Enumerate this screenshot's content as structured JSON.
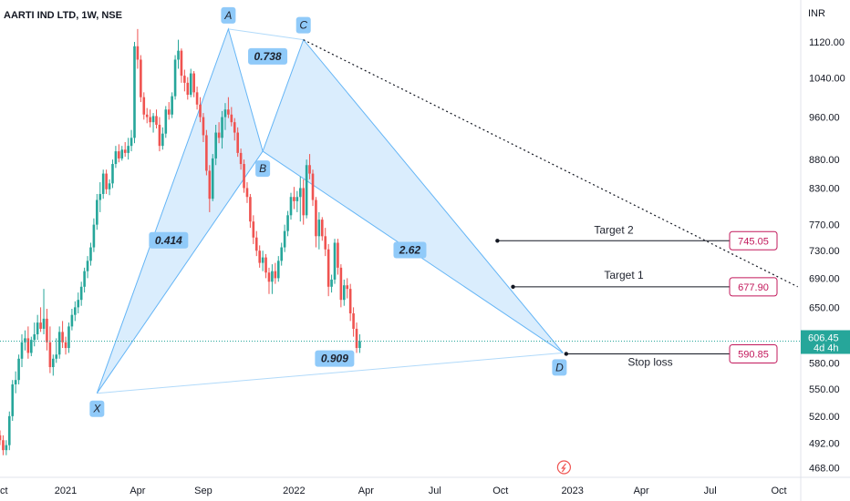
{
  "header": {
    "title": "AARTI IND LTD, 1W, NSE"
  },
  "currency": "INR",
  "colors": {
    "up": "#26a69a",
    "down": "#ef5350",
    "pattern_fill": "#bbdefb",
    "pattern_stroke": "#64b5f6",
    "label_box": "#90caf9",
    "target_border": "#c2185b",
    "last_price_bg": "#26a69a",
    "trendline": "#131722"
  },
  "chart_data": {
    "type": "candlestick",
    "title": "AARTI IND LTD, 1W, NSE",
    "y_axis": {
      "scale": "log",
      "range": [
        455,
        1250
      ],
      "ticks": [
        "1120.00",
        "1040.00",
        "960.00",
        "880.00",
        "830.00",
        "770.00",
        "730.00",
        "690.00",
        "650.00",
        "580.00",
        "550.00",
        "520.00",
        "492.00",
        "468.00"
      ]
    },
    "x_axis": {
      "ticks": [
        "Oct",
        "2021",
        "Apr",
        "Sep",
        "2022",
        "Apr",
        "Jul",
        "Oct",
        "2023",
        "Apr",
        "Jul",
        "Oct"
      ]
    },
    "candles": [
      {
        "o": 500,
        "h": 505,
        "l": 490,
        "c": 495
      },
      {
        "o": 495,
        "h": 500,
        "l": 480,
        "c": 485
      },
      {
        "o": 485,
        "h": 495,
        "l": 480,
        "c": 490
      },
      {
        "o": 490,
        "h": 525,
        "l": 485,
        "c": 520
      },
      {
        "o": 520,
        "h": 560,
        "l": 515,
        "c": 555
      },
      {
        "o": 555,
        "h": 570,
        "l": 545,
        "c": 560
      },
      {
        "o": 560,
        "h": 590,
        "l": 555,
        "c": 585
      },
      {
        "o": 585,
        "h": 615,
        "l": 575,
        "c": 605
      },
      {
        "o": 605,
        "h": 620,
        "l": 595,
        "c": 610
      },
      {
        "o": 610,
        "h": 625,
        "l": 585,
        "c": 592
      },
      {
        "o": 592,
        "h": 612,
        "l": 588,
        "c": 608
      },
      {
        "o": 608,
        "h": 630,
        "l": 600,
        "c": 615
      },
      {
        "o": 615,
        "h": 640,
        "l": 608,
        "c": 630
      },
      {
        "o": 630,
        "h": 650,
        "l": 618,
        "c": 622
      },
      {
        "o": 622,
        "h": 675,
        "l": 615,
        "c": 635
      },
      {
        "o": 635,
        "h": 648,
        "l": 595,
        "c": 605
      },
      {
        "o": 605,
        "h": 625,
        "l": 568,
        "c": 575
      },
      {
        "o": 575,
        "h": 590,
        "l": 565,
        "c": 585
      },
      {
        "o": 585,
        "h": 610,
        "l": 580,
        "c": 590
      },
      {
        "o": 590,
        "h": 625,
        "l": 585,
        "c": 618
      },
      {
        "o": 618,
        "h": 632,
        "l": 598,
        "c": 605
      },
      {
        "o": 605,
        "h": 612,
        "l": 590,
        "c": 598
      },
      {
        "o": 598,
        "h": 630,
        "l": 592,
        "c": 625
      },
      {
        "o": 625,
        "h": 648,
        "l": 620,
        "c": 640
      },
      {
        "o": 640,
        "h": 658,
        "l": 632,
        "c": 650
      },
      {
        "o": 650,
        "h": 670,
        "l": 642,
        "c": 660
      },
      {
        "o": 660,
        "h": 685,
        "l": 652,
        "c": 678
      },
      {
        "o": 678,
        "h": 705,
        "l": 670,
        "c": 700
      },
      {
        "o": 700,
        "h": 722,
        "l": 690,
        "c": 715
      },
      {
        "o": 715,
        "h": 742,
        "l": 708,
        "c": 735
      },
      {
        "o": 735,
        "h": 780,
        "l": 728,
        "c": 770
      },
      {
        "o": 770,
        "h": 820,
        "l": 762,
        "c": 810
      },
      {
        "o": 810,
        "h": 840,
        "l": 790,
        "c": 820
      },
      {
        "o": 820,
        "h": 862,
        "l": 812,
        "c": 855
      },
      {
        "o": 855,
        "h": 862,
        "l": 820,
        "c": 828
      },
      {
        "o": 828,
        "h": 845,
        "l": 818,
        "c": 838
      },
      {
        "o": 838,
        "h": 880,
        "l": 830,
        "c": 872
      },
      {
        "o": 872,
        "h": 905,
        "l": 865,
        "c": 895
      },
      {
        "o": 895,
        "h": 908,
        "l": 875,
        "c": 882
      },
      {
        "o": 882,
        "h": 905,
        "l": 878,
        "c": 898
      },
      {
        "o": 898,
        "h": 912,
        "l": 885,
        "c": 892
      },
      {
        "o": 892,
        "h": 920,
        "l": 880,
        "c": 905
      },
      {
        "o": 905,
        "h": 935,
        "l": 895,
        "c": 920
      },
      {
        "o": 920,
        "h": 1120,
        "l": 910,
        "c": 1110
      },
      {
        "o": 1110,
        "h": 1150,
        "l": 1060,
        "c": 1080
      },
      {
        "o": 1080,
        "h": 1090,
        "l": 990,
        "c": 1000
      },
      {
        "o": 1000,
        "h": 1010,
        "l": 955,
        "c": 965
      },
      {
        "o": 965,
        "h": 978,
        "l": 948,
        "c": 960
      },
      {
        "o": 960,
        "h": 975,
        "l": 940,
        "c": 950
      },
      {
        "o": 950,
        "h": 968,
        "l": 930,
        "c": 962
      },
      {
        "o": 962,
        "h": 975,
        "l": 938,
        "c": 945
      },
      {
        "o": 945,
        "h": 960,
        "l": 895,
        "c": 905
      },
      {
        "o": 905,
        "h": 940,
        "l": 898,
        "c": 928
      },
      {
        "o": 928,
        "h": 982,
        "l": 920,
        "c": 975
      },
      {
        "o": 975,
        "h": 990,
        "l": 955,
        "c": 965
      },
      {
        "o": 965,
        "h": 1010,
        "l": 958,
        "c": 1002
      },
      {
        "o": 1002,
        "h": 1090,
        "l": 995,
        "c": 1080
      },
      {
        "o": 1080,
        "h": 1125,
        "l": 1060,
        "c": 1100
      },
      {
        "o": 1100,
        "h": 1105,
        "l": 1030,
        "c": 1045
      },
      {
        "o": 1045,
        "h": 1058,
        "l": 1012,
        "c": 1030
      },
      {
        "o": 1030,
        "h": 1042,
        "l": 995,
        "c": 1005
      },
      {
        "o": 1005,
        "h": 1060,
        "l": 1000,
        "c": 1050
      },
      {
        "o": 1050,
        "h": 1055,
        "l": 1000,
        "c": 1010
      },
      {
        "o": 1010,
        "h": 1022,
        "l": 975,
        "c": 985
      },
      {
        "o": 985,
        "h": 1000,
        "l": 950,
        "c": 960
      },
      {
        "o": 960,
        "h": 968,
        "l": 912,
        "c": 925
      },
      {
        "o": 925,
        "h": 935,
        "l": 852,
        "c": 860
      },
      {
        "o": 860,
        "h": 870,
        "l": 790,
        "c": 812
      },
      {
        "o": 812,
        "h": 890,
        "l": 808,
        "c": 882
      },
      {
        "o": 882,
        "h": 945,
        "l": 870,
        "c": 930
      },
      {
        "o": 930,
        "h": 950,
        "l": 910,
        "c": 920
      },
      {
        "o": 920,
        "h": 972,
        "l": 900,
        "c": 960
      },
      {
        "o": 960,
        "h": 988,
        "l": 935,
        "c": 975
      },
      {
        "o": 975,
        "h": 1000,
        "l": 958,
        "c": 965
      },
      {
        "o": 965,
        "h": 980,
        "l": 942,
        "c": 950
      },
      {
        "o": 950,
        "h": 958,
        "l": 915,
        "c": 930
      },
      {
        "o": 930,
        "h": 940,
        "l": 885,
        "c": 892
      },
      {
        "o": 892,
        "h": 900,
        "l": 862,
        "c": 872
      },
      {
        "o": 872,
        "h": 880,
        "l": 822,
        "c": 830
      },
      {
        "o": 830,
        "h": 840,
        "l": 805,
        "c": 815
      },
      {
        "o": 815,
        "h": 820,
        "l": 765,
        "c": 775
      },
      {
        "o": 775,
        "h": 785,
        "l": 740,
        "c": 750
      },
      {
        "o": 750,
        "h": 760,
        "l": 722,
        "c": 730
      },
      {
        "o": 730,
        "h": 738,
        "l": 705,
        "c": 712
      },
      {
        "o": 712,
        "h": 730,
        "l": 700,
        "c": 720
      },
      {
        "o": 720,
        "h": 725,
        "l": 690,
        "c": 698
      },
      {
        "o": 698,
        "h": 705,
        "l": 668,
        "c": 685
      },
      {
        "o": 685,
        "h": 710,
        "l": 668,
        "c": 700
      },
      {
        "o": 700,
        "h": 712,
        "l": 682,
        "c": 690
      },
      {
        "o": 690,
        "h": 722,
        "l": 685,
        "c": 715
      },
      {
        "o": 715,
        "h": 742,
        "l": 708,
        "c": 735
      },
      {
        "o": 735,
        "h": 770,
        "l": 728,
        "c": 760
      },
      {
        "o": 760,
        "h": 792,
        "l": 752,
        "c": 785
      },
      {
        "o": 785,
        "h": 822,
        "l": 778,
        "c": 815
      },
      {
        "o": 815,
        "h": 832,
        "l": 795,
        "c": 808
      },
      {
        "o": 808,
        "h": 825,
        "l": 790,
        "c": 815
      },
      {
        "o": 815,
        "h": 850,
        "l": 775,
        "c": 830
      },
      {
        "o": 830,
        "h": 845,
        "l": 770,
        "c": 785
      },
      {
        "o": 785,
        "h": 880,
        "l": 780,
        "c": 870
      },
      {
        "o": 870,
        "h": 890,
        "l": 845,
        "c": 855
      },
      {
        "o": 855,
        "h": 862,
        "l": 800,
        "c": 810
      },
      {
        "o": 810,
        "h": 815,
        "l": 735,
        "c": 752
      },
      {
        "o": 752,
        "h": 790,
        "l": 732,
        "c": 778
      },
      {
        "o": 778,
        "h": 782,
        "l": 745,
        "c": 752
      },
      {
        "o": 752,
        "h": 765,
        "l": 722,
        "c": 732
      },
      {
        "o": 732,
        "h": 740,
        "l": 665,
        "c": 678
      },
      {
        "o": 678,
        "h": 695,
        "l": 670,
        "c": 688
      },
      {
        "o": 688,
        "h": 748,
        "l": 682,
        "c": 742
      },
      {
        "o": 742,
        "h": 748,
        "l": 695,
        "c": 705
      },
      {
        "o": 705,
        "h": 710,
        "l": 650,
        "c": 660
      },
      {
        "o": 660,
        "h": 688,
        "l": 652,
        "c": 680
      },
      {
        "o": 680,
        "h": 690,
        "l": 662,
        "c": 675
      },
      {
        "o": 675,
        "h": 682,
        "l": 632,
        "c": 642
      },
      {
        "o": 642,
        "h": 650,
        "l": 612,
        "c": 622
      },
      {
        "o": 622,
        "h": 630,
        "l": 592,
        "c": 598
      },
      {
        "o": 598,
        "h": 615,
        "l": 592,
        "c": 606.45
      }
    ],
    "harmonic_pattern": {
      "points": [
        {
          "label": "X",
          "index": 31,
          "price": 545
        },
        {
          "label": "A",
          "index": 73,
          "price": 1150
        },
        {
          "label": "B",
          "index": 84,
          "price": 895
        },
        {
          "label": "C",
          "index": 97,
          "price": 1125
        },
        {
          "label": "D",
          "index": 180,
          "price": 592
        }
      ],
      "ratios": [
        {
          "text": "0.414",
          "between": "XB"
        },
        {
          "text": "0.738",
          "between": "AC"
        },
        {
          "text": "2.62",
          "between": "BD"
        },
        {
          "text": "0.909",
          "between": "XD"
        }
      ]
    },
    "levels": [
      {
        "name": "Target 2",
        "price": 745.05,
        "text": "745.05",
        "start_index": 159
      },
      {
        "name": "Target 1",
        "price": 677.9,
        "text": "677.90",
        "start_index": 164
      },
      {
        "name": "Stop loss",
        "price": 590.85,
        "text": "590.85",
        "start_index": 181
      }
    ],
    "trendline": {
      "from_index": 97,
      "from_price": 1125,
      "to_index": 255,
      "to_price": 678
    },
    "last_price": {
      "value": 606.45,
      "text": "606.45",
      "countdown": "4d 4h"
    }
  }
}
